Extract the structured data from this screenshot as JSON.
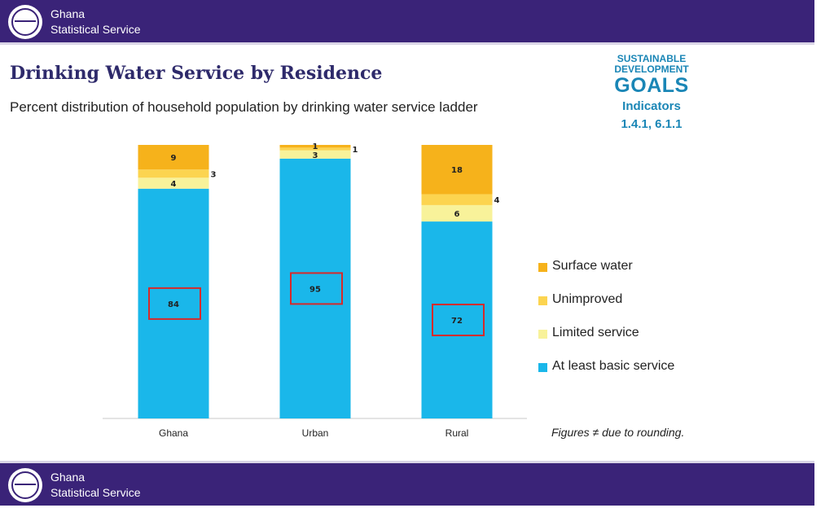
{
  "header": {
    "org_line1": "Ghana",
    "org_line2": "Statistical Service"
  },
  "footer": {
    "org_line1": "Ghana",
    "org_line2": "Statistical Service"
  },
  "title": "Drinking Water Service by Residence",
  "subtitle": "Percent distribution of household population by drinking water service ladder",
  "sdg": {
    "line1": "SUSTAINABLE",
    "line2": "DEVELOPMENT",
    "line3": "GOALS",
    "indicators_label": "Indicators",
    "indicators": "1.4.1, 6.1.1"
  },
  "note": "Figures ≠ due to rounding.",
  "colors": {
    "band": "#3a2378",
    "surface": "#f6b21b",
    "unimproved": "#fcd450",
    "limited": "#f8f29a",
    "basic": "#1ab7ea",
    "highlight": "#d62a2a"
  },
  "chart_data": {
    "type": "bar",
    "stacked": true,
    "categories": [
      "Ghana",
      "Urban",
      "Rural"
    ],
    "series": [
      {
        "name": "At least basic service",
        "values": [
          84,
          95,
          72
        ],
        "color": "#1ab7ea"
      },
      {
        "name": "Limited service",
        "values": [
          4,
          3,
          6
        ],
        "color": "#f8f29a"
      },
      {
        "name": "Unimproved",
        "values": [
          3,
          1,
          4
        ],
        "color": "#fcd450"
      },
      {
        "name": "Surface water",
        "values": [
          9,
          1,
          18
        ],
        "color": "#f6b21b"
      }
    ],
    "legend_order": [
      "Surface water",
      "Unimproved",
      "Limited service",
      "At least basic service"
    ],
    "highlighted_series": "At least basic service",
    "ylim": [
      0,
      100
    ],
    "grid": false,
    "legend_position": "right"
  }
}
